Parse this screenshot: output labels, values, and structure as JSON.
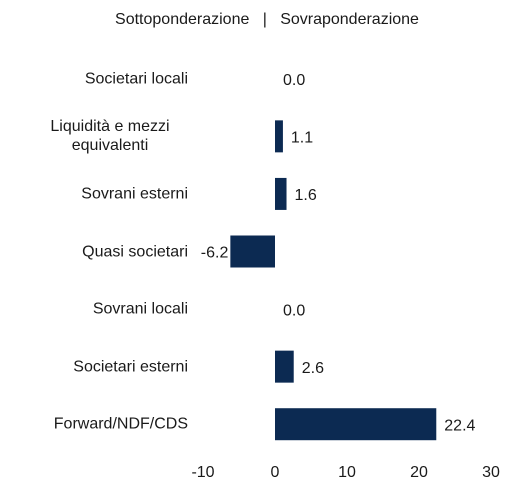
{
  "chart_data": {
    "type": "barh",
    "title": "Sottoponderazione   |   Sovraponderazione",
    "categories": [
      "Societari locali",
      "Liquidità e mezzi equivalenti",
      "Sovrani esterni",
      "Quasi societari",
      "Sovrani locali",
      "Societari esterni",
      "Forward/NDF/CDS"
    ],
    "values": [
      0,
      1.1,
      1.6,
      -6.2,
      0,
      2.6,
      22.4
    ],
    "value_labels": [
      "0.0",
      "1.1",
      "1.6",
      "-6.2",
      "0.0",
      "2.6",
      "22.4"
    ],
    "color": "#0c2a52",
    "xlim": [
      -10,
      30
    ],
    "xticks": [
      -10,
      0,
      10,
      20,
      30
    ],
    "grid": false
  }
}
